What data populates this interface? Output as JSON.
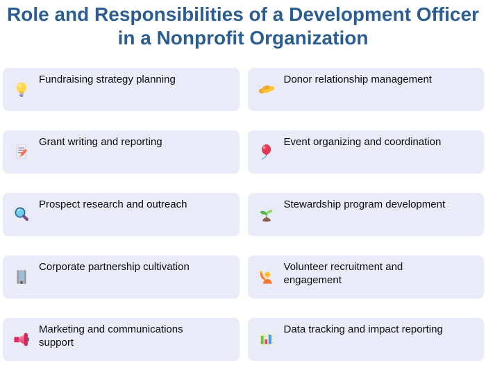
{
  "title": "Role and Responsibilities of a Development Officer in a Nonprofit Organization",
  "theme": {
    "title_color": "#2b5d92",
    "card_bg": "#e9ecf8",
    "card_text": "#0a0a0c",
    "page_bg": "#ffffff"
  },
  "items": [
    {
      "label": "Fundraising strategy planning",
      "icon": "lightbulb-icon"
    },
    {
      "label": "Donor relationship management",
      "icon": "handshake-icon"
    },
    {
      "label": "Grant writing and reporting",
      "icon": "memo-pencil-icon"
    },
    {
      "label": "Event organizing and coordination",
      "icon": "balloon-icon"
    },
    {
      "label": "Prospect research and outreach",
      "icon": "magnifying-glass-icon"
    },
    {
      "label": "Stewardship program development",
      "icon": "seedling-icon"
    },
    {
      "label": "Corporate partnership cultivation",
      "icon": "office-building-icon"
    },
    {
      "label": "Volunteer recruitment and engagement",
      "icon": "person-raising-hand-icon"
    },
    {
      "label": "Marketing and communications support",
      "icon": "megaphone-icon"
    },
    {
      "label": "Data tracking and impact reporting",
      "icon": "bar-chart-icon"
    }
  ]
}
